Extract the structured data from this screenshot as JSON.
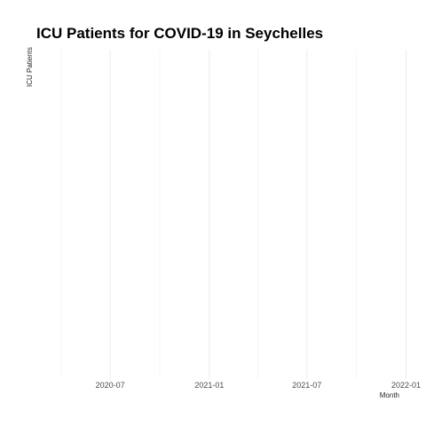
{
  "chart_data": {
    "type": "line",
    "title": "ICU Patients for COVID-19 in Seychelles",
    "xlabel": "Month",
    "ylabel": "ICU Patients",
    "x_type": "date",
    "xlim": [
      "2020-02-15",
      "2022-01-15"
    ],
    "x_ticks": [
      "2020-07",
      "2021-01",
      "2021-07",
      "2022-01"
    ],
    "x_minor_ticks": [
      "2020-04",
      "2020-10",
      "2021-04",
      "2021-10"
    ],
    "y_ticks": [],
    "grid": true,
    "legend": "none",
    "series": [
      {
        "values": []
      }
    ]
  }
}
